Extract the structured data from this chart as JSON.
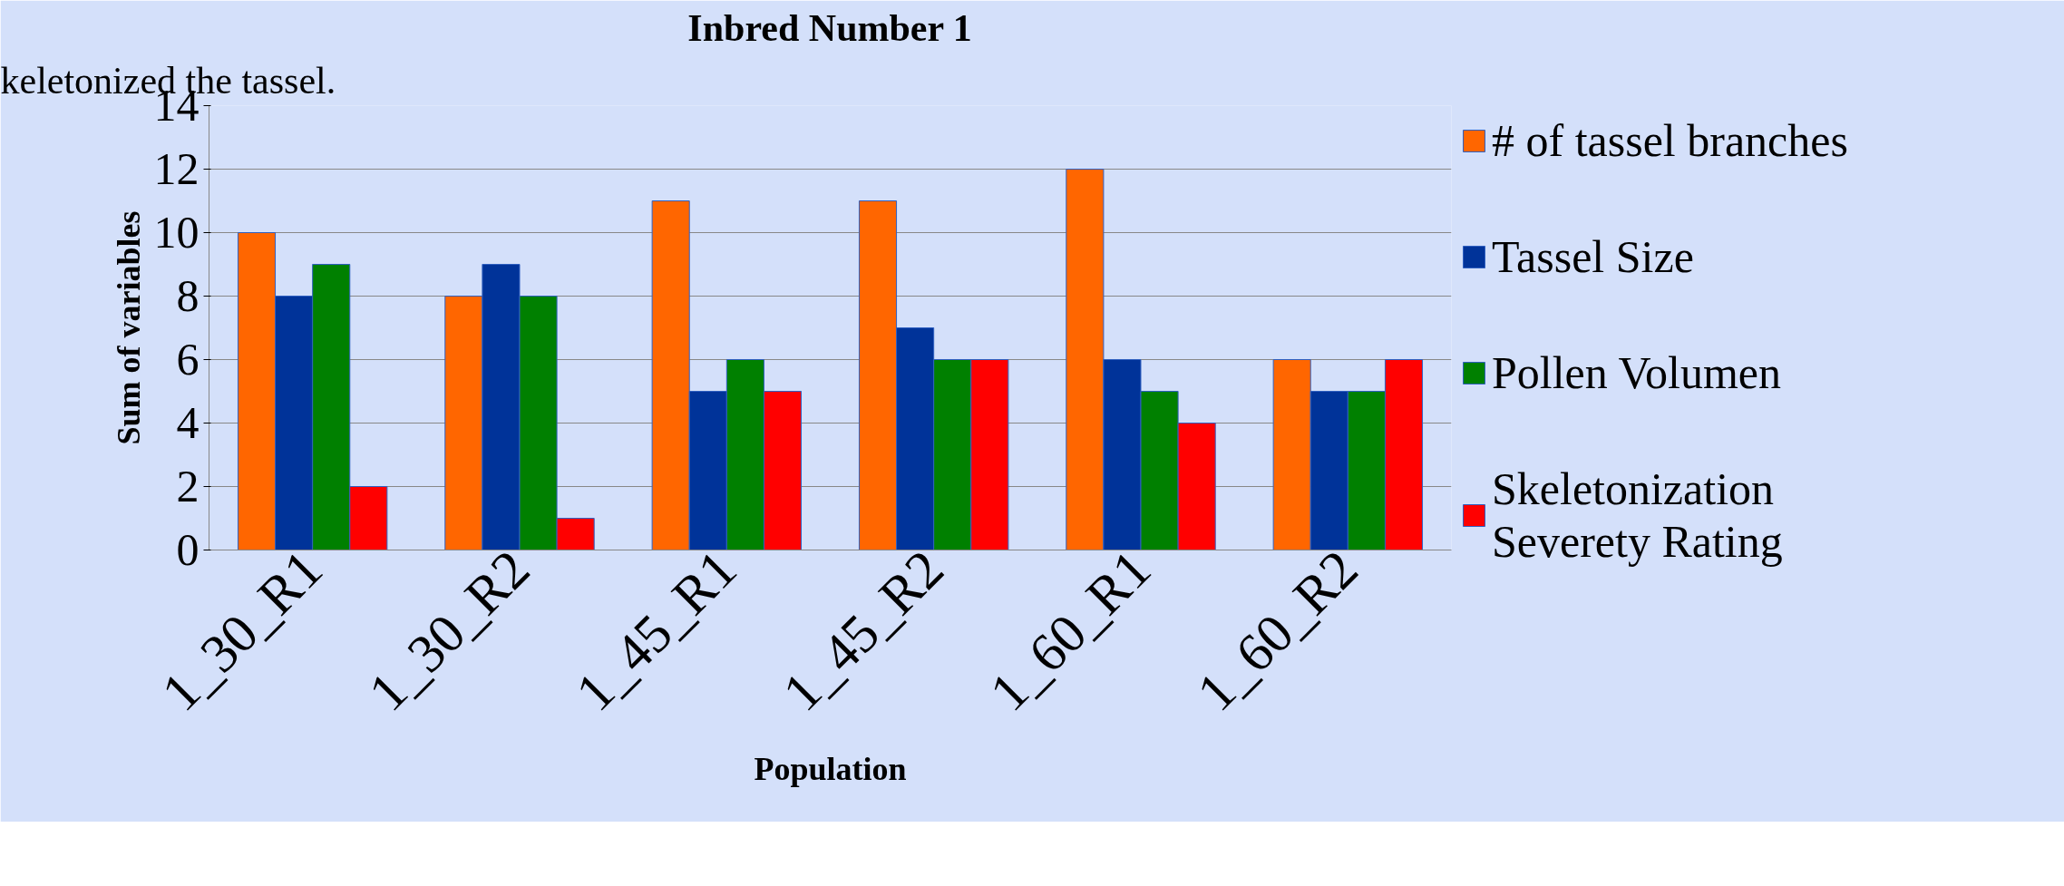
{
  "chart_data": {
    "type": "bar",
    "title": "Inbred Number 1",
    "xlabel": "Population",
    "ylabel": "Sum of variables",
    "annotations": [
      "keletonized the tassel."
    ],
    "categories": [
      "1_30_R1",
      "1_30_R2",
      "1_45_R1",
      "1_45_R2",
      "1_60_R1",
      "1_60_R2"
    ],
    "series": [
      {
        "name": "# of tassel branches",
        "color": "#ff6600",
        "values": [
          10,
          8,
          11,
          11,
          12,
          6
        ]
      },
      {
        "name": "Tassel Size",
        "color": "#003399",
        "values": [
          8,
          9,
          5,
          7,
          6,
          5
        ]
      },
      {
        "name": "Pollen Volumen",
        "color": "#008000",
        "values": [
          9,
          8,
          6,
          6,
          5,
          5
        ]
      },
      {
        "name": "Skeletonization Severety Rating",
        "color": "#ff0000",
        "values": [
          2,
          1,
          5,
          6,
          4,
          6
        ]
      }
    ],
    "ylim": [
      0,
      14
    ],
    "yticks": [
      0,
      2,
      4,
      6,
      8,
      10,
      12,
      14
    ],
    "grid": "y",
    "legend": "right"
  }
}
